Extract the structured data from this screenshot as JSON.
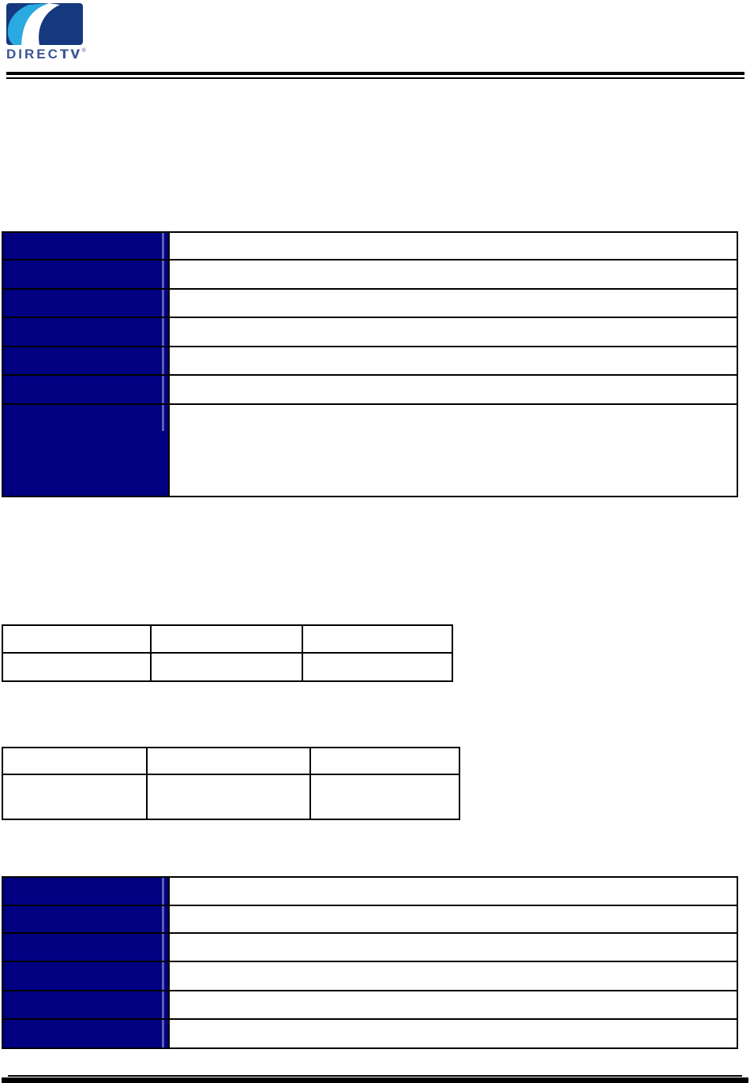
{
  "logo": {
    "brand_light": "DIREC",
    "brand_bold": "TV",
    "registered": "®"
  },
  "colors": {
    "page_background": "#ffffff",
    "header_cell_navy": "#000080",
    "header_cell_strip": "#5d5db5",
    "table_border": "#000000",
    "rule_black": "#000000",
    "logo_box_blue": "#16387e",
    "logo_swoosh_cyan": "#29aae1",
    "logo_wordmark_blue": "#3a5596"
  },
  "tables": {
    "spec_table_top": {
      "rows": [
        {
          "label": "",
          "value": ""
        },
        {
          "label": "",
          "value": ""
        },
        {
          "label": "",
          "value": ""
        },
        {
          "label": "",
          "value": ""
        },
        {
          "label": "",
          "value": ""
        },
        {
          "label": "",
          "value": ""
        },
        {
          "label": "",
          "value": ""
        }
      ]
    },
    "grid_table_upper": {
      "rows": [
        [
          "",
          "",
          ""
        ],
        [
          "",
          "",
          ""
        ]
      ]
    },
    "grid_table_lower": {
      "rows": [
        [
          "",
          "",
          ""
        ],
        [
          "",
          "",
          ""
        ]
      ]
    },
    "spec_table_bottom": {
      "rows": [
        {
          "label": "",
          "value": ""
        },
        {
          "label": "",
          "value": ""
        },
        {
          "label": "",
          "value": ""
        },
        {
          "label": "",
          "value": ""
        },
        {
          "label": "",
          "value": ""
        },
        {
          "label": "",
          "value": ""
        }
      ]
    }
  }
}
